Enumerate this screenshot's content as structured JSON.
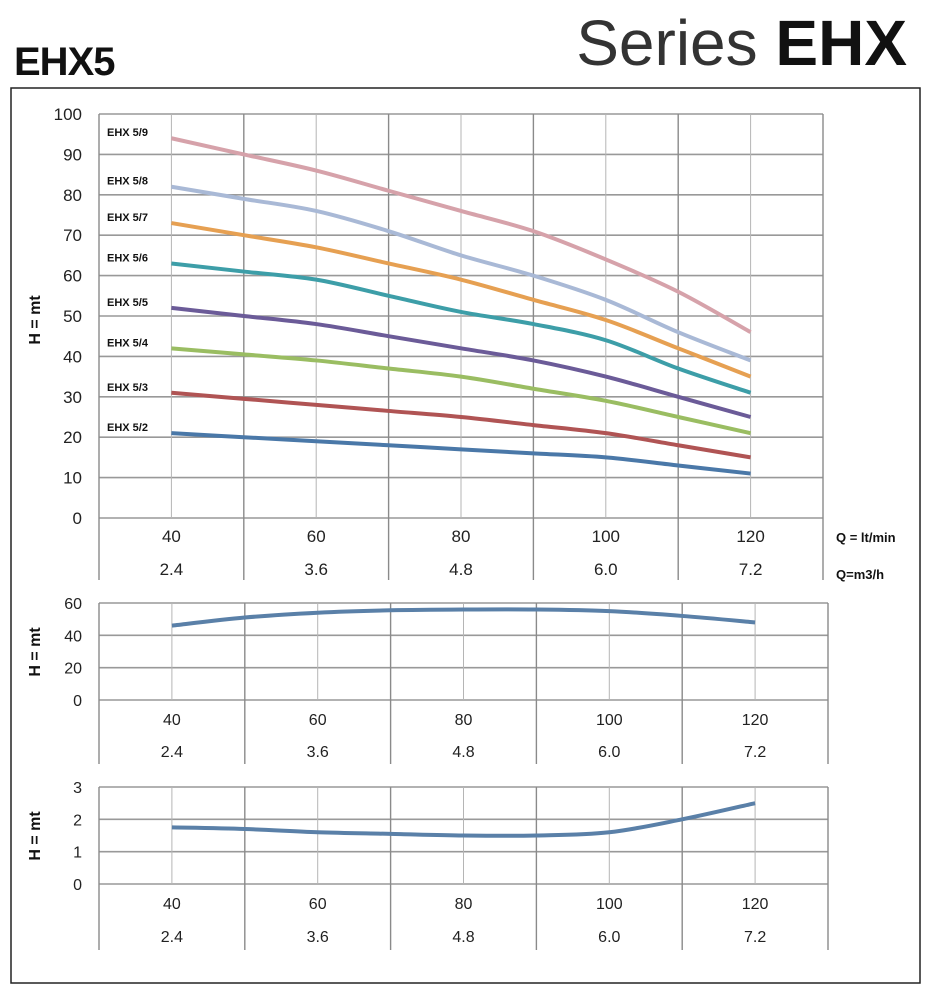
{
  "header": {
    "model": "EHX5",
    "series_prefix": "Series",
    "series_name": "EHX"
  },
  "colors": {
    "grid": "#9a9a9a",
    "frame": "#222222",
    "aux_line": "#5a80a8"
  },
  "chart_data": [
    {
      "type": "line",
      "ylabel": "H = mt",
      "xlabel": "Q = lt/min",
      "xlabel2": "Q=m3/h",
      "xlim": [
        30,
        130
      ],
      "ylim": [
        0,
        100
      ],
      "yticks": [
        0,
        10,
        20,
        30,
        40,
        50,
        60,
        70,
        80,
        90,
        100
      ],
      "xtick_values": [
        40,
        60,
        80,
        100,
        120
      ],
      "xtick_labels": [
        "40",
        "60",
        "80",
        "100",
        "120"
      ],
      "xtick_labels2": [
        "2.4",
        "3.6",
        "4.8",
        "6.0",
        "7.2"
      ],
      "grid": true,
      "legend": "inline-left",
      "x": [
        40,
        50,
        60,
        70,
        80,
        90,
        100,
        110,
        120
      ],
      "series": [
        {
          "name": "EHX 5/9",
          "color": "#d6a2aa",
          "values": [
            94,
            90,
            86,
            81,
            76,
            71,
            64,
            56,
            46
          ]
        },
        {
          "name": "EHX 5/8",
          "color": "#a9b9d6",
          "values": [
            82,
            79,
            76,
            71,
            65,
            60,
            54,
            46,
            39
          ]
        },
        {
          "name": "EHX 5/7",
          "color": "#e6a052",
          "values": [
            73,
            70,
            67,
            63,
            59,
            54,
            49,
            42,
            35
          ]
        },
        {
          "name": "EHX 5/6",
          "color": "#3d9ea8",
          "values": [
            63,
            61,
            59,
            55,
            51,
            48,
            44,
            37,
            31
          ]
        },
        {
          "name": "EHX 5/5",
          "color": "#6b5b98",
          "values": [
            52,
            50,
            48,
            45,
            42,
            39,
            35,
            30,
            25
          ]
        },
        {
          "name": "EHX 5/4",
          "color": "#9abd62",
          "values": [
            42,
            40.5,
            39,
            37,
            35,
            32,
            29,
            25,
            21
          ]
        },
        {
          "name": "EHX 5/3",
          "color": "#b05454",
          "values": [
            31,
            29.5,
            28,
            26.5,
            25,
            23,
            21,
            18,
            15
          ]
        },
        {
          "name": "EHX 5/2",
          "color": "#4a78a8",
          "values": [
            21,
            20,
            19,
            18,
            17,
            16,
            15,
            13,
            11
          ]
        }
      ]
    },
    {
      "type": "line",
      "ylabel": "H = mt",
      "xlim": [
        30,
        130
      ],
      "ylim": [
        0,
        60
      ],
      "yticks": [
        0,
        20,
        40,
        60
      ],
      "xtick_values": [
        40,
        60,
        80,
        100,
        120
      ],
      "xtick_labels": [
        "40",
        "60",
        "80",
        "100",
        "120"
      ],
      "xtick_labels2": [
        "2.4",
        "3.6",
        "4.8",
        "6.0",
        "7.2"
      ],
      "grid": true,
      "x": [
        40,
        50,
        60,
        70,
        80,
        90,
        100,
        110,
        120
      ],
      "series": [
        {
          "color": "#5a80a8",
          "values": [
            46,
            51,
            54,
            55.5,
            56,
            56,
            55,
            52,
            48
          ]
        }
      ]
    },
    {
      "type": "line",
      "ylabel": "H = mt",
      "xlim": [
        30,
        130
      ],
      "ylim": [
        0,
        3
      ],
      "yticks": [
        0,
        1,
        2,
        3
      ],
      "xtick_values": [
        40,
        60,
        80,
        100,
        120
      ],
      "xtick_labels": [
        "40",
        "60",
        "80",
        "100",
        "120"
      ],
      "xtick_labels2": [
        "2.4",
        "3.6",
        "4.8",
        "6.0",
        "7.2"
      ],
      "grid": true,
      "x": [
        40,
        50,
        60,
        70,
        80,
        90,
        100,
        110,
        120
      ],
      "series": [
        {
          "color": "#5a80a8",
          "values": [
            1.75,
            1.7,
            1.6,
            1.55,
            1.5,
            1.5,
            1.6,
            2.0,
            2.5
          ]
        }
      ]
    }
  ]
}
